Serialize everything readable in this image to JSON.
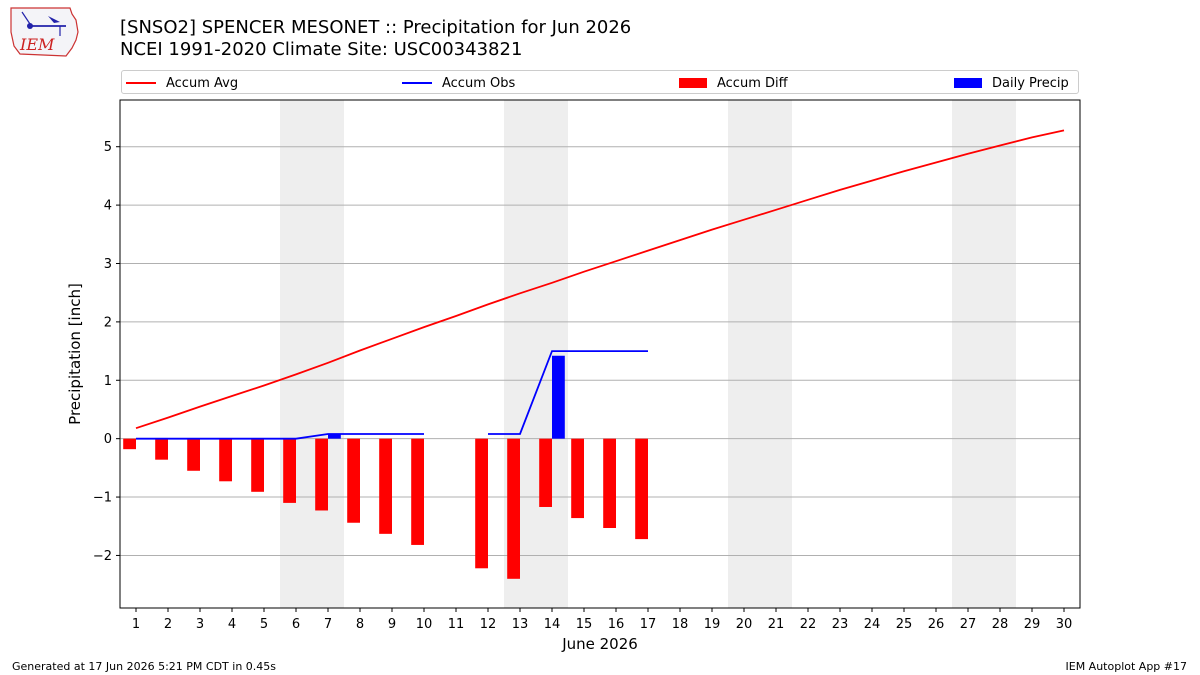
{
  "logo": {
    "text": "IEM"
  },
  "title_line1": "[SNSO2] SPENCER MESONET :: Precipitation for Jun 2026",
  "title_line2": "NCEI 1991-2020 Climate Site: USC00343821",
  "legend": [
    {
      "label": "Accum Avg",
      "color": "#ff0000",
      "kind": "line"
    },
    {
      "label": "Accum Obs",
      "color": "#0000ff",
      "kind": "line"
    },
    {
      "label": "Accum Diff",
      "color": "#ff0000",
      "kind": "box"
    },
    {
      "label": "Daily Precip",
      "color": "#0000ff",
      "kind": "box"
    }
  ],
  "footer_left": "Generated at 17 Jun 2026 5:21 PM CDT in 0.45s",
  "footer_right": "IEM Autoplot App #17",
  "chart_data": {
    "type": "bar",
    "xlabel": "June 2026",
    "ylabel": "Precipitation [inch]",
    "xlim": [
      0.5,
      30.5
    ],
    "ylim": [
      -2.9,
      5.8
    ],
    "x_ticks": [
      1,
      2,
      3,
      4,
      5,
      6,
      7,
      8,
      9,
      10,
      11,
      12,
      13,
      14,
      15,
      16,
      17,
      18,
      19,
      20,
      21,
      22,
      23,
      24,
      25,
      26,
      27,
      28,
      29,
      30
    ],
    "y_ticks": [
      -2,
      -1,
      0,
      1,
      2,
      3,
      4,
      5
    ],
    "grid": "horizontal",
    "weekend_shading": [
      [
        6,
        7
      ],
      [
        13,
        14
      ],
      [
        20,
        21
      ],
      [
        27,
        28
      ]
    ],
    "series": [
      {
        "name": "Accum Avg",
        "type": "line",
        "color": "#ff0000",
        "x": [
          1,
          2,
          3,
          4,
          5,
          6,
          7,
          8,
          9,
          10,
          11,
          12,
          13,
          14,
          15,
          16,
          17,
          18,
          19,
          20,
          21,
          22,
          23,
          24,
          25,
          26,
          27,
          28,
          29,
          30
        ],
        "values": [
          0.18,
          0.36,
          0.55,
          0.73,
          0.91,
          1.1,
          1.3,
          1.51,
          1.71,
          1.91,
          2.1,
          2.3,
          2.49,
          2.67,
          2.86,
          3.04,
          3.22,
          3.4,
          3.58,
          3.75,
          3.92,
          4.09,
          4.26,
          4.42,
          4.58,
          4.73,
          4.88,
          5.02,
          5.16,
          5.28
        ]
      },
      {
        "name": "Accum Obs",
        "type": "line",
        "color": "#0000ff",
        "x": [
          1,
          2,
          3,
          4,
          5,
          6,
          7,
          8,
          9,
          10,
          11,
          12,
          13,
          14,
          15,
          16,
          17
        ],
        "values": [
          0,
          0,
          0,
          0,
          0,
          0,
          0.08,
          0.08,
          0.08,
          0.08,
          null,
          0.08,
          0.08,
          1.5,
          1.5,
          1.5,
          1.5
        ]
      },
      {
        "name": "Accum Diff",
        "type": "bar",
        "color": "#ff0000",
        "x": [
          1,
          2,
          3,
          4,
          5,
          6,
          7,
          8,
          9,
          10,
          12,
          13,
          14,
          15,
          16,
          17
        ],
        "values": [
          -0.18,
          -0.36,
          -0.55,
          -0.73,
          -0.91,
          -1.1,
          -1.23,
          -1.44,
          -1.63,
          -1.82,
          -2.22,
          -2.4,
          -1.17,
          -1.36,
          -1.53,
          -1.72
        ]
      },
      {
        "name": "Daily Precip",
        "type": "bar",
        "color": "#0000ff",
        "x": [
          7,
          14
        ],
        "values": [
          0.08,
          1.42
        ]
      }
    ]
  }
}
